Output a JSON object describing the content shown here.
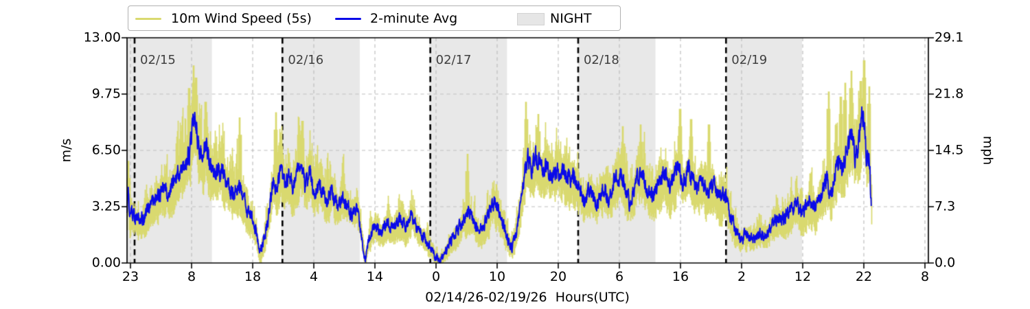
{
  "legend": {
    "items": [
      {
        "label": "10m Wind Speed (5s)",
        "swatch": "line",
        "color": "#d9d96f"
      },
      {
        "label": "2-minute Avg",
        "swatch": "line",
        "color": "#0a0ae8"
      },
      {
        "label": "NIGHT",
        "swatch": "patch",
        "color": "#e6e6e6"
      }
    ]
  },
  "axes": {
    "left": {
      "label": "m/s",
      "ticks": [
        "13.00",
        "9.75",
        "6.50",
        "3.25",
        "0.00"
      ]
    },
    "right": {
      "label": "mph",
      "ticks": [
        "29.1",
        "21.8",
        "14.5",
        "7.3",
        "0.0"
      ]
    },
    "x": {
      "label": "02/14/26-02/19/26  Hours(UTC)",
      "ticks": [
        "23",
        "8",
        "18",
        "4",
        "14",
        "0",
        "10",
        "20",
        "6",
        "16",
        "2",
        "12",
        "22",
        "8"
      ]
    }
  },
  "annotations": {
    "day_labels": [
      "02/15",
      "02/16",
      "02/17",
      "02/18",
      "02/19"
    ]
  },
  "colors": {
    "raw_series": "#d9d96f",
    "avg_series": "#0a0ae8",
    "night_band": "#e8e8e8",
    "gridline": "#bdbdbd",
    "day_line": "#000000",
    "spine": "#000000",
    "day_label_text": "#3f3f3f"
  },
  "chart_data": {
    "type": "line",
    "title": "",
    "xlabel": "02/14/26-02/19/26  Hours(UTC)",
    "ylabel_left": "m/s",
    "ylabel_right": "mph",
    "ylim": [
      0,
      13
    ],
    "ylim_right": [
      0,
      29.1
    ],
    "grid": true,
    "legend_position": "top-left",
    "x_units": "hours since 02/15/26 00:00 UTC",
    "x_range_hours": [
      -1.23,
      128.86
    ],
    "data_end_hour": 119.6,
    "night_bands_hours": [
      [
        -1.23,
        12.55
      ],
      [
        23.78,
        36.55
      ],
      [
        47.85,
        60.45
      ],
      [
        71.95,
        84.55
      ],
      [
        96.0,
        108.35
      ]
    ],
    "midnight_lines_hours": [
      0,
      24,
      48,
      72,
      96
    ],
    "series": [
      {
        "name": "2-minute Avg",
        "style": "noisy-line",
        "control_points": [
          [
            -1.23,
            2.6
          ],
          [
            -1.05,
            4.3
          ],
          [
            -0.8,
            2.3
          ],
          [
            -0.4,
            2.9
          ],
          [
            0,
            2.6
          ],
          [
            1,
            2.4
          ],
          [
            2,
            3.0
          ],
          [
            3,
            3.5
          ],
          [
            4,
            3.9
          ],
          [
            5,
            4.5
          ],
          [
            5.6,
            3.8
          ],
          [
            6.3,
            4.6
          ],
          [
            7,
            5.1
          ],
          [
            8,
            5.7
          ],
          [
            9,
            6.6
          ],
          [
            9.7,
            8.6
          ],
          [
            10.3,
            6.7
          ],
          [
            11,
            6.1
          ],
          [
            11.5,
            7.0
          ],
          [
            12,
            5.9
          ],
          [
            13,
            5.1
          ],
          [
            14,
            5.6
          ],
          [
            15,
            4.6
          ],
          [
            16,
            4.1
          ],
          [
            17,
            4.7
          ],
          [
            18,
            3.4
          ],
          [
            19,
            2.6
          ],
          [
            19.7,
            1.8
          ],
          [
            20.3,
            0.35
          ],
          [
            21,
            1.5
          ],
          [
            21.7,
            2.7
          ],
          [
            22.4,
            4.6
          ],
          [
            23,
            4.3
          ],
          [
            23.7,
            5.2
          ],
          [
            24.4,
            4.5
          ],
          [
            25,
            5.3
          ],
          [
            25.6,
            4.4
          ],
          [
            26.3,
            5.0
          ],
          [
            27,
            6.2
          ],
          [
            27.7,
            4.7
          ],
          [
            28.4,
            5.5
          ],
          [
            29,
            4.3
          ],
          [
            30,
            4.8
          ],
          [
            31,
            3.6
          ],
          [
            32,
            4.3
          ],
          [
            33,
            3.2
          ],
          [
            34,
            3.8
          ],
          [
            35,
            3.0
          ],
          [
            36,
            3.3
          ],
          [
            36.6,
            2.3
          ],
          [
            37,
            1.1
          ],
          [
            37.4,
            0.2
          ],
          [
            38,
            1.2
          ],
          [
            39,
            2.2
          ],
          [
            40,
            1.7
          ],
          [
            41,
            2.4
          ],
          [
            42,
            1.8
          ],
          [
            43,
            2.6
          ],
          [
            44,
            2.0
          ],
          [
            45,
            2.7
          ],
          [
            46,
            1.9
          ],
          [
            47,
            1.5
          ],
          [
            48,
            0.9
          ],
          [
            48.7,
            0.45
          ],
          [
            49.5,
            0.2
          ],
          [
            50.5,
            0.8
          ],
          [
            51.5,
            1.4
          ],
          [
            52.5,
            2.0
          ],
          [
            53.5,
            2.7
          ],
          [
            54.2,
            3.2
          ],
          [
            55,
            2.4
          ],
          [
            56,
            1.7
          ],
          [
            56.8,
            2.3
          ],
          [
            57.5,
            3.0
          ],
          [
            58.2,
            3.7
          ],
          [
            59,
            3.1
          ],
          [
            59.8,
            2.3
          ],
          [
            60.5,
            1.4
          ],
          [
            61.2,
            0.9
          ],
          [
            61.9,
            1.7
          ],
          [
            62.6,
            3.2
          ],
          [
            63.2,
            5.0
          ],
          [
            63.8,
            6.1
          ],
          [
            64.5,
            5.5
          ],
          [
            65.2,
            6.3
          ],
          [
            66,
            5.4
          ],
          [
            67,
            5.8
          ],
          [
            68,
            5.1
          ],
          [
            69,
            5.6
          ],
          [
            70,
            4.8
          ],
          [
            71,
            5.2
          ],
          [
            72,
            4.4
          ],
          [
            73,
            3.6
          ],
          [
            74,
            4.2
          ],
          [
            75,
            3.4
          ],
          [
            76,
            4.4
          ],
          [
            77,
            3.8
          ],
          [
            78,
            4.7
          ],
          [
            79,
            5.2
          ],
          [
            79.7,
            4.2
          ],
          [
            80.5,
            3.4
          ],
          [
            81.3,
            4.8
          ],
          [
            82,
            5.4
          ],
          [
            83,
            4.4
          ],
          [
            84,
            3.8
          ],
          [
            85,
            4.6
          ],
          [
            86,
            5.2
          ],
          [
            86.8,
            4.4
          ],
          [
            87.5,
            5.0
          ],
          [
            88.3,
            5.8
          ],
          [
            89,
            4.6
          ],
          [
            90,
            5.4
          ],
          [
            91,
            4.3
          ],
          [
            92,
            5.0
          ],
          [
            93,
            4.0
          ],
          [
            94,
            4.5
          ],
          [
            95,
            3.6
          ],
          [
            95.7,
            4.1
          ],
          [
            96.5,
            3.0
          ],
          [
            97.5,
            1.9
          ],
          [
            98.5,
            1.4
          ],
          [
            99.5,
            1.7
          ],
          [
            100.5,
            1.3
          ],
          [
            101.5,
            1.8
          ],
          [
            102.5,
            1.5
          ],
          [
            103.5,
            2.2
          ],
          [
            104.5,
            2.6
          ],
          [
            105.5,
            2.4
          ],
          [
            106.5,
            3.0
          ],
          [
            107.5,
            3.4
          ],
          [
            108.5,
            3.0
          ],
          [
            109.5,
            3.6
          ],
          [
            110.5,
            3.2
          ],
          [
            111.5,
            4.0
          ],
          [
            112.3,
            4.8
          ],
          [
            113,
            3.9
          ],
          [
            113.7,
            5.2
          ],
          [
            114.4,
            6.2
          ],
          [
            115,
            5.4
          ],
          [
            115.7,
            6.6
          ],
          [
            116.4,
            7.6
          ],
          [
            117,
            6.3
          ],
          [
            117.7,
            7.2
          ],
          [
            118.3,
            8.7
          ],
          [
            118.8,
            5.9
          ],
          [
            119.2,
            6.4
          ],
          [
            119.6,
            3.4
          ]
        ]
      },
      {
        "name": "10m Wind Speed (5s)",
        "style": "envelope",
        "gust_spikes": [
          [
            -1.05,
            5.9
          ],
          [
            8.8,
            10.1
          ],
          [
            9.55,
            11.4
          ],
          [
            9.9,
            10.7
          ],
          [
            11.5,
            9.3
          ],
          [
            17.0,
            8.4
          ],
          [
            22.9,
            8.7
          ],
          [
            26.6,
            8.4
          ],
          [
            27.2,
            8.2
          ],
          [
            54.0,
            6.3
          ],
          [
            63.5,
            9.3
          ],
          [
            65.5,
            8.6
          ],
          [
            79.2,
            7.9
          ],
          [
            82.1,
            8.0
          ],
          [
            88.5,
            8.9
          ],
          [
            90.3,
            8.3
          ],
          [
            93.2,
            8.0
          ],
          [
            112.6,
            9.9
          ],
          [
            114.6,
            9.6
          ],
          [
            115.3,
            10.4
          ],
          [
            116.3,
            11.1
          ],
          [
            117.8,
            10.5
          ],
          [
            118.35,
            11.7
          ],
          [
            119.2,
            10.2
          ]
        ]
      }
    ]
  }
}
